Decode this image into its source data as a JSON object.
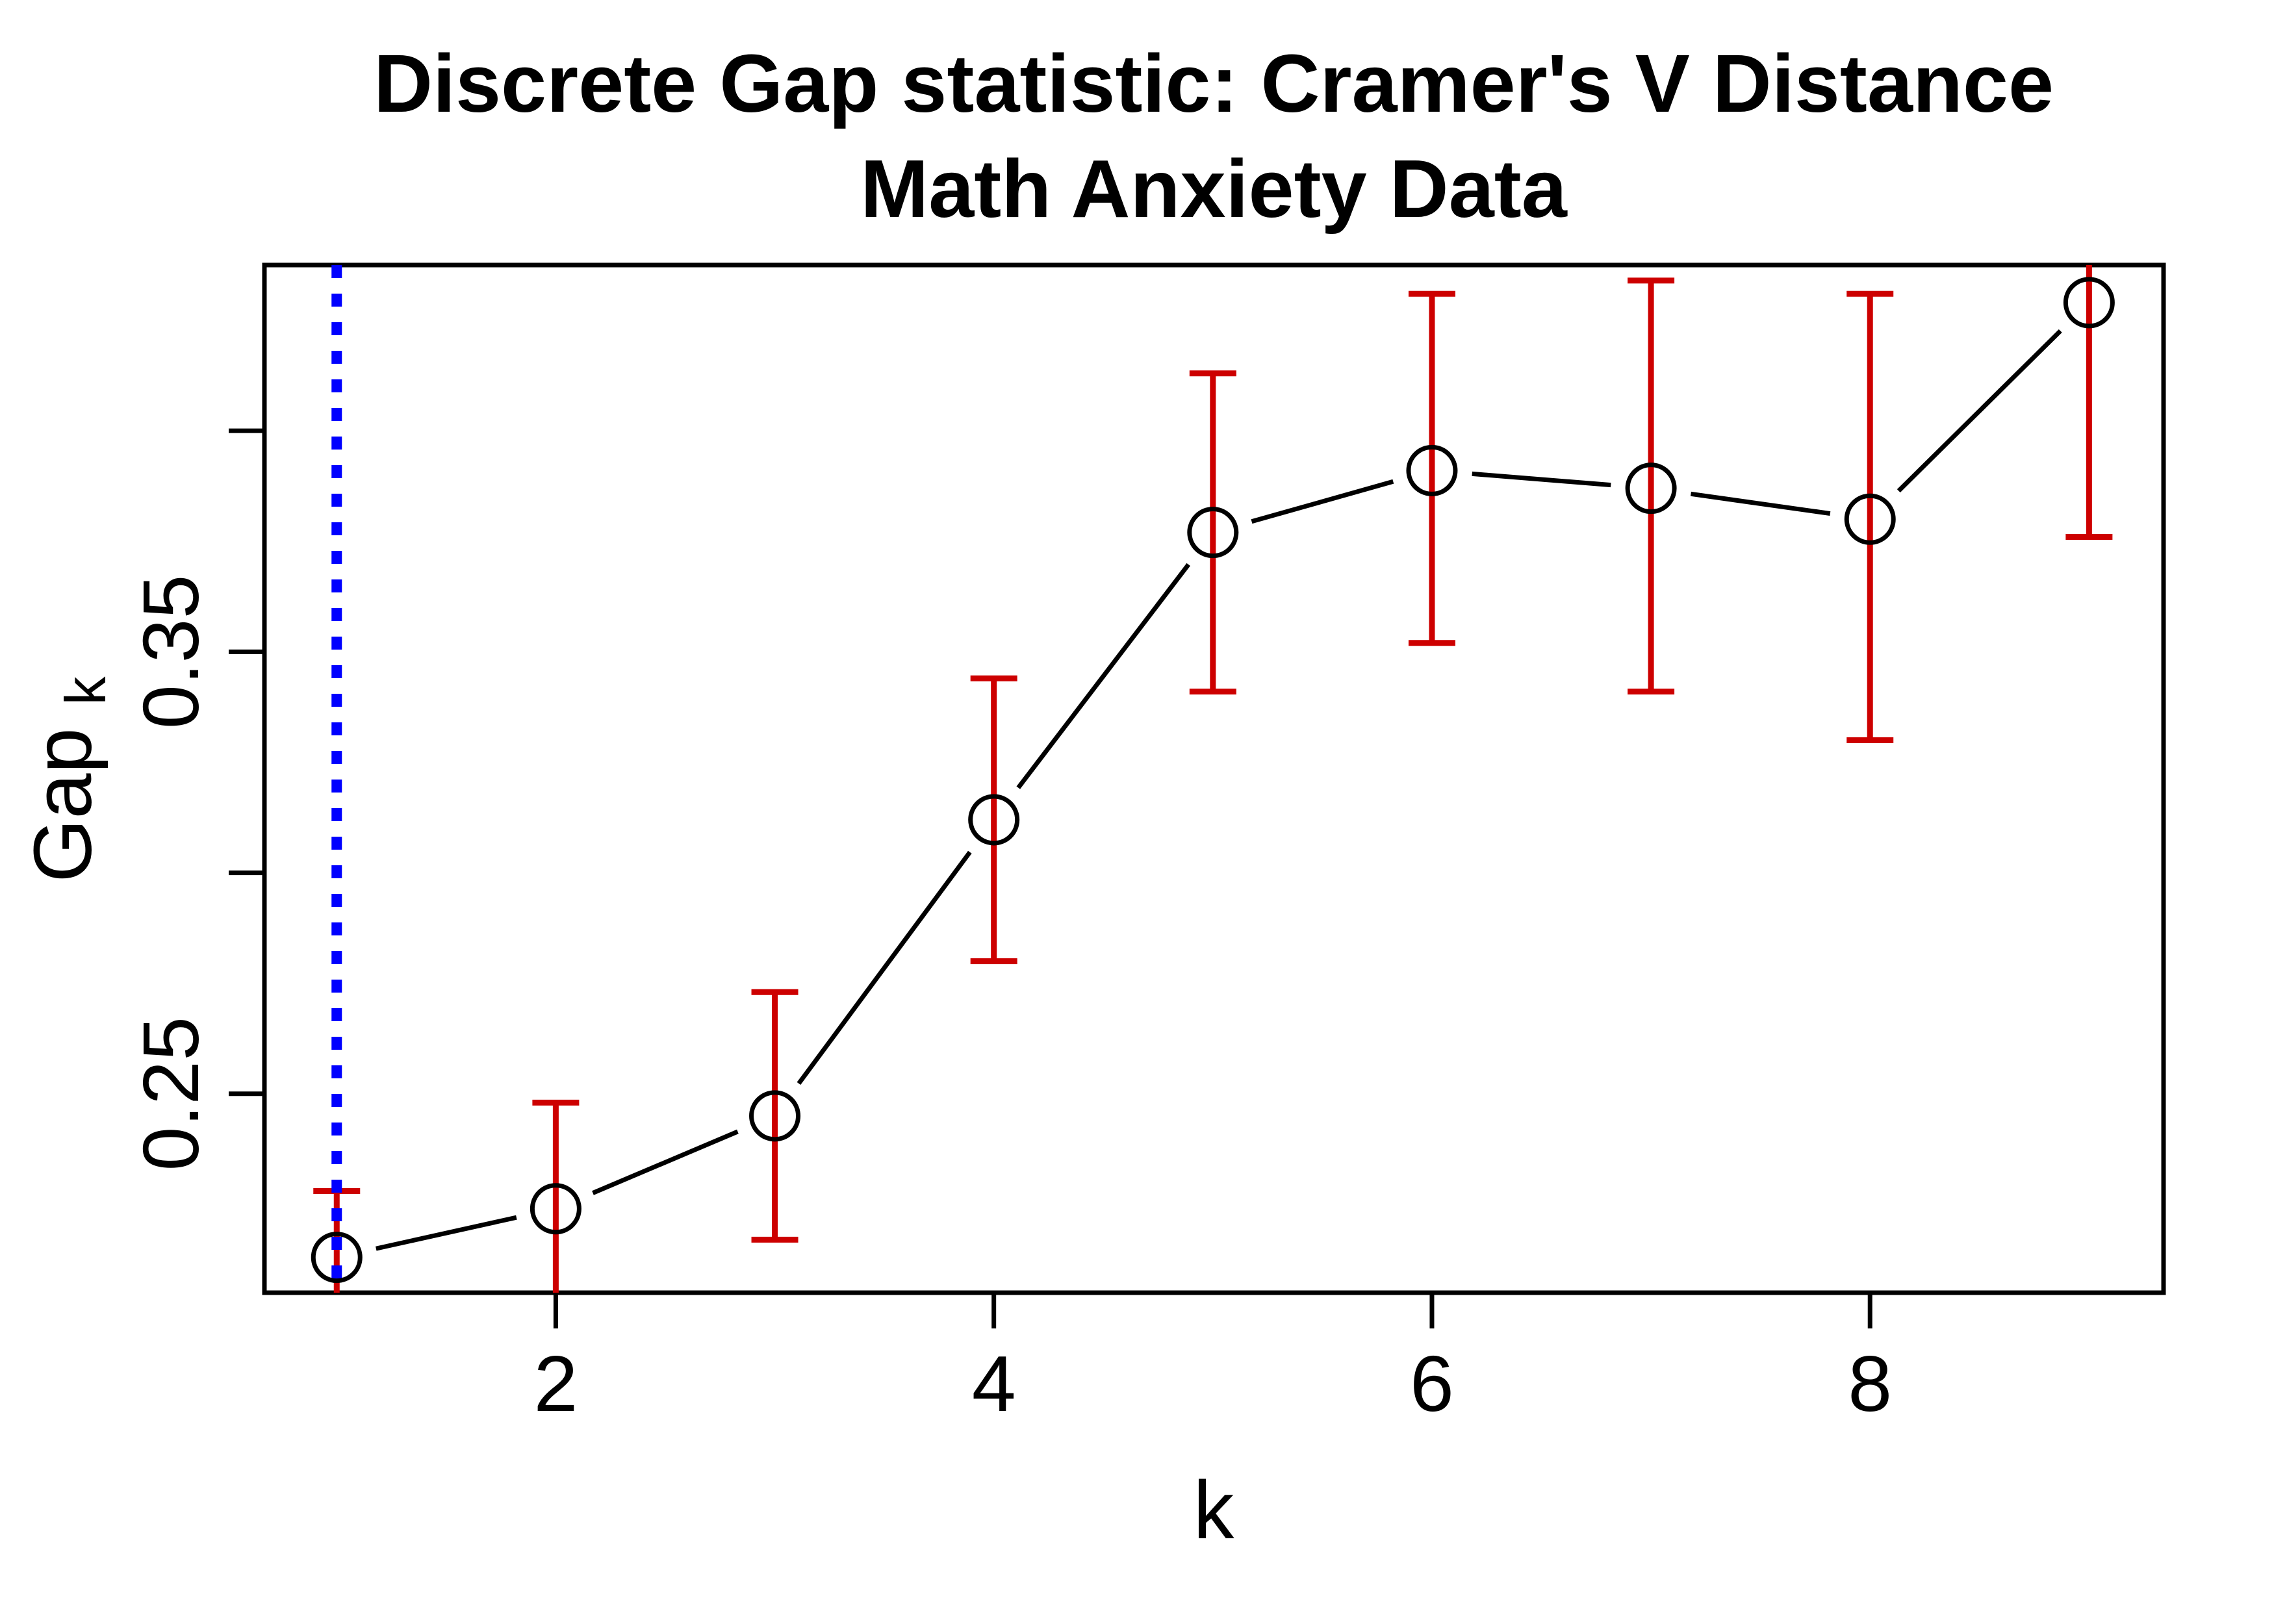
{
  "title": {
    "line1": "Discrete Gap statistic: Cramer's V Distance",
    "line2": "Math Anxiety Data"
  },
  "axes": {
    "x_label": "k",
    "y_label_base": "Gap",
    "y_label_sub": "k"
  },
  "chart_data": {
    "type": "line",
    "title": "Discrete Gap statistic: Cramer's V Distance — Math Anxiety Data",
    "xlabel": "k",
    "ylabel": "Gap_k",
    "marker": "open-circle",
    "line_color": "#000000",
    "error_bar_color": "#CD0000",
    "reference_line": {
      "x": 1,
      "color": "#0000FF",
      "style": "dotted"
    },
    "xlim": [
      0.67,
      9.34
    ],
    "ylim": [
      0.205,
      0.4375
    ],
    "grid": false,
    "x_axis": {
      "ticks": [
        {
          "value": 2,
          "label": "2"
        },
        {
          "value": 4,
          "label": "4"
        },
        {
          "value": 6,
          "label": "6"
        },
        {
          "value": 8,
          "label": "8"
        }
      ]
    },
    "y_axis": {
      "ticks": [
        {
          "value": 0.25,
          "label": "0.25"
        },
        {
          "value": 0.3,
          "label": ""
        },
        {
          "value": 0.35,
          "label": "0.35"
        },
        {
          "value": 0.4,
          "label": ""
        }
      ]
    },
    "points": [
      {
        "k": 1,
        "gap": 0.213,
        "err_low": null,
        "err_high": 0.228,
        "low_clipped": true,
        "high_clipped": false
      },
      {
        "k": 2,
        "gap": 0.224,
        "err_low": null,
        "err_high": 0.248,
        "low_clipped": true,
        "high_clipped": false
      },
      {
        "k": 3,
        "gap": 0.245,
        "err_low": 0.217,
        "err_high": 0.273,
        "low_clipped": false,
        "high_clipped": false
      },
      {
        "k": 4,
        "gap": 0.312,
        "err_low": 0.28,
        "err_high": 0.344,
        "low_clipped": false,
        "high_clipped": false
      },
      {
        "k": 5,
        "gap": 0.377,
        "err_low": 0.341,
        "err_high": 0.413,
        "low_clipped": false,
        "high_clipped": false
      },
      {
        "k": 6,
        "gap": 0.391,
        "err_low": 0.352,
        "err_high": 0.431,
        "low_clipped": false,
        "high_clipped": false
      },
      {
        "k": 7,
        "gap": 0.387,
        "err_low": 0.341,
        "err_high": 0.434,
        "low_clipped": false,
        "high_clipped": false
      },
      {
        "k": 8,
        "gap": 0.38,
        "err_low": 0.33,
        "err_high": 0.431,
        "low_clipped": false,
        "high_clipped": false
      },
      {
        "k": 9,
        "gap": 0.429,
        "err_low": 0.376,
        "err_high": null,
        "low_clipped": false,
        "high_clipped": true
      }
    ]
  }
}
